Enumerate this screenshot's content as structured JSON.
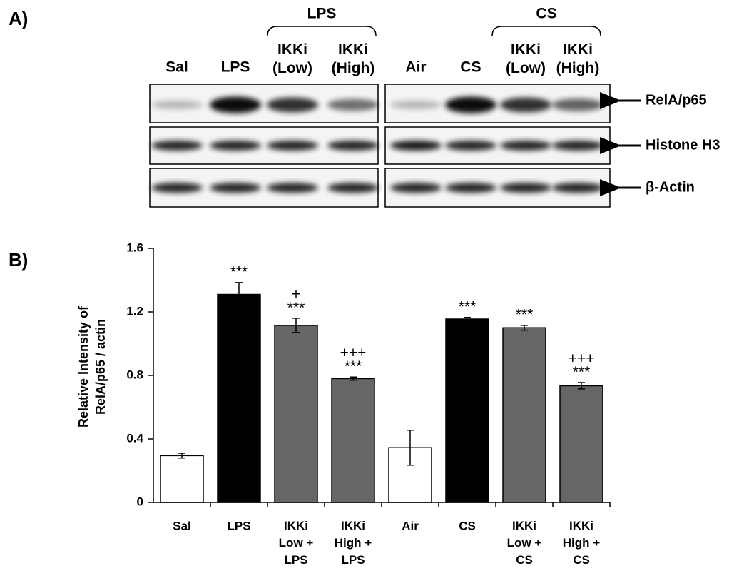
{
  "panel_labels": [
    "A)",
    "B)"
  ],
  "panel_a": {
    "groups": [
      "LPS",
      "CS"
    ],
    "lanes": [
      "Sal",
      "LPS",
      "IKKi\n(Low)",
      "IKKi\n(High)",
      "Air",
      "CS",
      "IKKi\n(Low)",
      "IKKi\n(High)"
    ],
    "rows": [
      "RelA/p65",
      "Histone H3",
      "β-Actin"
    ]
  },
  "chart_data": {
    "type": "bar",
    "y_label": "Relative Intensity of\nRelA/p65 / actin",
    "categories": [
      "Sal",
      "LPS",
      "IKKi\nLow +\nLPS",
      "IKKi\nHigh +\nLPS",
      "Air",
      "CS",
      "IKKi\nLow +\nCS",
      "IKKi\nHigh +\nCS"
    ],
    "values": [
      0.295,
      1.31,
      1.115,
      0.78,
      0.345,
      1.155,
      1.1,
      0.735
    ],
    "errors": [
      0.015,
      0.075,
      0.045,
      0.01,
      0.11,
      0.01,
      0.015,
      0.02
    ],
    "colors": [
      "#ffffff",
      "#000000",
      "#666666",
      "#666666",
      "#ffffff",
      "#000000",
      "#666666",
      "#666666"
    ],
    "annotations": [
      null,
      "***",
      "+\n***",
      "+++\n***",
      null,
      "***",
      "***",
      "+++\n***"
    ],
    "ylim": [
      0,
      1.6
    ],
    "yticks": [
      0,
      0.4,
      0.8,
      1.2,
      1.6
    ],
    "grid": false
  }
}
